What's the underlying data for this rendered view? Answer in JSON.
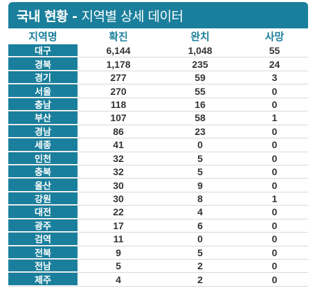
{
  "header": {
    "title_bold": "국내 현황 -",
    "title_light": "지역별 상세 데이터"
  },
  "columns": {
    "region": "지역명",
    "confirmed": "확진",
    "recovered": "완치",
    "deaths": "사망"
  },
  "rows": [
    {
      "region": "대구",
      "confirmed": "6,144",
      "recovered": "1,048",
      "deaths": "55"
    },
    {
      "region": "경북",
      "confirmed": "1,178",
      "recovered": "235",
      "deaths": "24"
    },
    {
      "region": "경기",
      "confirmed": "277",
      "recovered": "59",
      "deaths": "3"
    },
    {
      "region": "서울",
      "confirmed": "270",
      "recovered": "55",
      "deaths": "0"
    },
    {
      "region": "충남",
      "confirmed": "118",
      "recovered": "16",
      "deaths": "0"
    },
    {
      "region": "부산",
      "confirmed": "107",
      "recovered": "58",
      "deaths": "1"
    },
    {
      "region": "경남",
      "confirmed": "86",
      "recovered": "23",
      "deaths": "0"
    },
    {
      "region": "세종",
      "confirmed": "41",
      "recovered": "0",
      "deaths": "0"
    },
    {
      "region": "인천",
      "confirmed": "32",
      "recovered": "5",
      "deaths": "0"
    },
    {
      "region": "충북",
      "confirmed": "32",
      "recovered": "5",
      "deaths": "0"
    },
    {
      "region": "울산",
      "confirmed": "30",
      "recovered": "9",
      "deaths": "0"
    },
    {
      "region": "강원",
      "confirmed": "30",
      "recovered": "8",
      "deaths": "1"
    },
    {
      "region": "대전",
      "confirmed": "22",
      "recovered": "4",
      "deaths": "0"
    },
    {
      "region": "광주",
      "confirmed": "17",
      "recovered": "6",
      "deaths": "0"
    },
    {
      "region": "검역",
      "confirmed": "11",
      "recovered": "0",
      "deaths": "0"
    },
    {
      "region": "전북",
      "confirmed": "9",
      "recovered": "5",
      "deaths": "0"
    },
    {
      "region": "전남",
      "confirmed": "5",
      "recovered": "2",
      "deaths": "0"
    },
    {
      "region": "제주",
      "confirmed": "4",
      "recovered": "2",
      "deaths": "0"
    }
  ],
  "colors": {
    "accent": "#1a7f9c",
    "text": "#333333",
    "divider": "#d9d9d9"
  }
}
